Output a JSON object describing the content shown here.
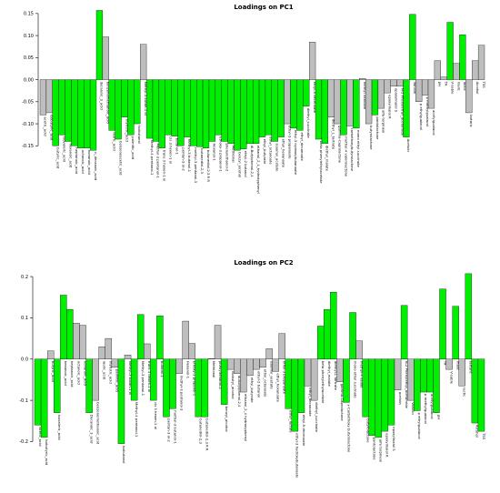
{
  "chart_data": [
    {
      "type": "bar",
      "title": "Loadings on PC1",
      "xlabel": "",
      "ylabel": "",
      "ylim": [
        -0.17,
        0.16
      ],
      "yticks": [
        "0.15",
        "0.10",
        "0.05",
        "0.00",
        "-0.05",
        "-0.10",
        "-0.15"
      ],
      "ytick_values": [
        0.15,
        0.1,
        0.05,
        0.0,
        -0.05,
        -0.1,
        -0.15
      ],
      "colors": {
        "green": "#00ee00",
        "gray": "#bebebe"
      },
      "categories": [
        "acetic_acid",
        "isobutyric_acid",
        "butyric_acid",
        "isovaleric_acid",
        "hexanoic_acid",
        "heptanoic_acid",
        "octanoic_acid",
        "nonanoic_acid",
        "n_decanoic_acid",
        "decanoic_3_acid",
        "benzenemethanoic_acid",
        "lauric_acid",
        "benzeneacetic_acid",
        "myristic_acid",
        "palmitic_acid",
        "isobutanol",
        "Methyl-3 butan-1 ol",
        "Methyl-4 pentanol-1",
        "Methyl-3 pentanol-1",
        "trans 3 hexen-1 ol",
        "cis 3 hexen-1 ol",
        "butanol-1",
        "pentan-3 ol-2",
        "methyl-3 butanol-1",
        "methyl-3 pentanol-3",
        "butanediol-2,3",
        "butanediol-2,3 R R",
        "Hexanol-1",
        "Ethoxy-3 propanol-1",
        "phenylethanol-2",
        "Methional",
        "benzyl_alcohol",
        "ethyl-2 butanol",
        "dl-Butylphenol-2,4",
        "ethanol_2_4_hydroxyphenyl",
        "ethyl_butyrate",
        "ethyl_octanoate",
        "isoamyl_acetate",
        "ethyl_hexanoate",
        "ethyl-3 propanoate",
        "ethyl-3 hydroxybutanoate",
        "ethyl_decanoate",
        "diethyl_succinate",
        "ethyl-9 decenoate",
        "beta phenylethylacetate",
        "diethyl_malate",
        "diethyl_L_tartrate",
        "gamma-Caprolactone",
        "methyl-4 valerolactone",
        "carbethoxybutyrolactone",
        "mono ethyl succinate",
        "methyl vanillate",
        "butyrolactone",
        "pantolactone",
        "alfa terpineol",
        "epoxylinalol R",
        "epoxylinalol S",
        "N-2 Phenylethyl_acetamide",
        "Acetoin",
        "Vanillin",
        "p ethylguaiacol",
        "p methylguaiacol",
        "acetylguaiacol",
        "pH",
        "TA",
        "V-sable",
        "malic",
        "lactic",
        "tartaric",
        "Alcohol",
        "TSS"
      ],
      "values": [
        -0.08,
        -0.075,
        -0.15,
        -0.125,
        -0.14,
        -0.15,
        -0.155,
        -0.155,
        -0.16,
        0.157,
        0.097,
        -0.115,
        -0.135,
        -0.085,
        -0.125,
        -0.1,
        0.08,
        -0.133,
        -0.14,
        -0.155,
        -0.125,
        -0.128,
        -0.15,
        -0.13,
        -0.15,
        -0.152,
        -0.155,
        -0.14,
        -0.125,
        -0.14,
        -0.145,
        -0.16,
        -0.157,
        -0.145,
        -0.145,
        -0.13,
        -0.125,
        -0.14,
        -0.13,
        -0.1,
        -0.11,
        -0.115,
        -0.06,
        0.085,
        -0.135,
        -0.145,
        -0.085,
        -0.1,
        -0.125,
        -0.105,
        -0.11,
        0.003,
        -0.1,
        -0.08,
        -0.065,
        -0.03,
        -0.015,
        -0.015,
        -0.13,
        0.148,
        -0.05,
        -0.035,
        -0.065,
        0.043,
        0.006,
        0.13,
        0.037,
        0.102,
        -0.075,
        0.043,
        0.078
      ],
      "green": [
        false,
        false,
        true,
        true,
        true,
        true,
        true,
        true,
        true,
        true,
        false,
        true,
        true,
        true,
        true,
        true,
        false,
        true,
        true,
        true,
        true,
        true,
        true,
        true,
        true,
        true,
        true,
        true,
        true,
        true,
        true,
        true,
        true,
        true,
        true,
        true,
        true,
        true,
        true,
        false,
        true,
        true,
        true,
        false,
        true,
        true,
        false,
        false,
        true,
        false,
        true,
        false,
        false,
        true,
        false,
        false,
        false,
        false,
        true,
        true,
        false,
        false,
        false,
        false,
        false,
        true,
        false,
        true,
        false,
        false,
        false
      ],
      "shown_labels": [
        0,
        1,
        2,
        3,
        4,
        5,
        6,
        7,
        8,
        9,
        10,
        11,
        12,
        13,
        14,
        15,
        16,
        17,
        18,
        19,
        20,
        21,
        22,
        23,
        24,
        25,
        26,
        27,
        28,
        29,
        30,
        31,
        32,
        33,
        34,
        35,
        36,
        37,
        38,
        39,
        40,
        41,
        42,
        43,
        44,
        45,
        46,
        47,
        48,
        49,
        50,
        51,
        52,
        53,
        54,
        55,
        56,
        57,
        58,
        59,
        60,
        61,
        62,
        63,
        64,
        65,
        66,
        67,
        68,
        69,
        70
      ]
    },
    {
      "type": "bar",
      "title": "Loadings on PC2",
      "xlabel": "",
      "ylabel": "",
      "ylim": [
        -0.21,
        0.22
      ],
      "yticks": [
        "0.2",
        "0.1",
        "0.0",
        "-0.1",
        "-0.2"
      ],
      "ytick_values": [
        0.2,
        0.1,
        0.0,
        -0.1,
        -0.2
      ],
      "colors": {
        "green": "#00ee00",
        "gray": "#bebebe"
      },
      "categories": [
        "acetic_acid",
        "isobutyric_acid",
        "butyric_acid",
        "isovaleric_acid",
        "hexanoic_acid",
        "heptanoic_acid",
        "octanoic_acid",
        "nonanoic_acid",
        "Decanoic_3_acid",
        "benzenemethanoic_acid",
        "lauric_acid",
        "myristic_acid",
        "palmitic_acid",
        "isobutanol",
        "Methyl-3 butan-1 ol",
        "Methyl-4 pentanol-1",
        "Methyl-3 pentanol-1",
        "trans 3 hexen-1 ol",
        "cis 3 hexen-1 ol",
        "butanol-1",
        "pentan-3 ol-2",
        "methyl-3 butanol-1",
        "methyl-3 pentanol-3",
        "Hexanol-1",
        "Ethoxy-3 propanol-1",
        "butanediol-2,3",
        "butanediol-2,3 R R",
        "Methional",
        "phenylethanol-2",
        "benzyl_alcohol",
        "isobutyl_alcohol",
        "dl-Butylphenol-2,4",
        "ethanol_2_4 hydroxyphenyl",
        "ethyl_butyrate",
        "ethyl-2 butanol",
        "ethyl_octanoate",
        "isoamyl_acetate",
        "ethyl_hexanoate",
        "ethyl-3 propanoate",
        "ethyl_lactate",
        "ethyl-3 hydroxybutanoate",
        "ethyl-9 decenoate",
        "ethyl_decanoate",
        "diethyl_succinate",
        "beta phenylethylacetate",
        "diethyl_malate",
        "diethyl-L tartrate",
        "gamma-Caprolactone",
        "y-Carbethoxy butyrolactone",
        "mono ethyl succinate",
        "methyl-4 valide",
        "butyrolactone",
        "pantolactone",
        "alfa terpineol",
        "epoxylinalol R",
        "epoxylinalol S",
        "acetoin",
        "N-2 Phenylethyl_acetamide",
        "Vanillin",
        "p ethylguaiacol",
        "p methylguaiacol",
        "acetylguaiacol",
        "pH",
        "TA",
        "V-sable",
        "malic",
        "lactic",
        "tartaric",
        "Alcohol",
        "TSS"
      ],
      "values": [
        -0.16,
        -0.19,
        0.02,
        -0.13,
        0.155,
        0.12,
        0.087,
        0.082,
        -0.13,
        -0.1,
        0.03,
        0.05,
        -0.02,
        -0.205,
        0.01,
        -0.1,
        0.108,
        0.037,
        -0.1,
        0.105,
        -0.14,
        -0.12,
        -0.035,
        0.092,
        0.038,
        -0.14,
        -0.14,
        0.001,
        0.082,
        -0.11,
        -0.025,
        -0.035,
        -0.08,
        -0.04,
        -0.025,
        -0.02,
        0.025,
        -0.03,
        0.062,
        -0.12,
        -0.175,
        -0.13,
        -0.065,
        -0.1,
        0.08,
        0.12,
        0.162,
        -0.055,
        -0.105,
        0.113,
        0.044,
        -0.14,
        -0.185,
        -0.19,
        -0.175,
        -0.16,
        -0.075,
        0.13,
        -0.1,
        -0.125,
        -0.08,
        -0.08,
        -0.13,
        0.17,
        -0.025,
        0.128,
        -0.065,
        0.207,
        -0.155,
        -0.175
      ],
      "green": [
        true,
        true,
        false,
        true,
        true,
        true,
        false,
        false,
        true,
        false,
        false,
        false,
        false,
        true,
        false,
        true,
        true,
        false,
        true,
        true,
        true,
        true,
        false,
        false,
        false,
        true,
        true,
        false,
        false,
        true,
        false,
        false,
        false,
        false,
        false,
        false,
        false,
        false,
        false,
        true,
        true,
        true,
        false,
        false,
        true,
        true,
        true,
        false,
        true,
        true,
        false,
        true,
        true,
        true,
        true,
        true,
        false,
        true,
        false,
        true,
        true,
        true,
        true,
        true,
        false,
        true,
        false,
        true,
        true,
        true
      ],
      "shown_labels": [
        0,
        1,
        2,
        3,
        4,
        5,
        6,
        7,
        8,
        9,
        10,
        11,
        12,
        13,
        14,
        15,
        16,
        17,
        18,
        19,
        20,
        21,
        22,
        23,
        24,
        25,
        26,
        27,
        28,
        29,
        30,
        31,
        32,
        33,
        34,
        35,
        36,
        37,
        38,
        39,
        40,
        41,
        42,
        43,
        44,
        45,
        46,
        47,
        48,
        49,
        50,
        51,
        52,
        53,
        54,
        55,
        56,
        57,
        58,
        59,
        60,
        61,
        62,
        63,
        64,
        65,
        66,
        67,
        68,
        69
      ]
    }
  ]
}
